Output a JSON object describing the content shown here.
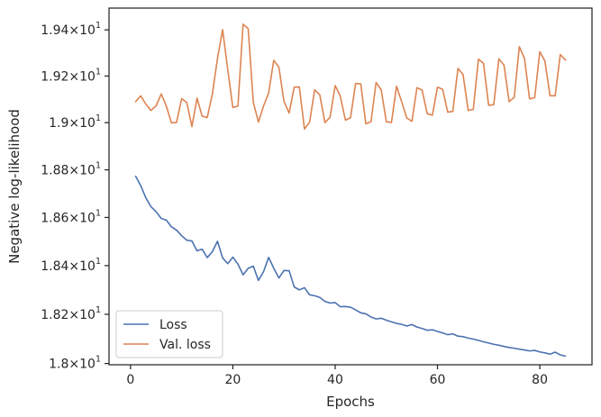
{
  "chart_data": {
    "type": "line",
    "title": "",
    "xlabel": "Epochs",
    "ylabel": "Negative log-likelihood",
    "xlim": [
      -4.2,
      90.2
    ],
    "ylim": [
      17.995,
      19.495
    ],
    "y_scale": "log",
    "grid": false,
    "legend_position": "lower-left",
    "xticks": [
      {
        "value": 0,
        "label": "0"
      },
      {
        "value": 20,
        "label": "20"
      },
      {
        "value": 40,
        "label": "40"
      },
      {
        "value": 60,
        "label": "60"
      },
      {
        "value": 80,
        "label": "80"
      }
    ],
    "yticks": [
      {
        "value": 18.0,
        "mantissa": "1.8",
        "exponent": "1"
      },
      {
        "value": 18.2,
        "mantissa": "1.82",
        "exponent": "1"
      },
      {
        "value": 18.4,
        "mantissa": "1.84",
        "exponent": "1"
      },
      {
        "value": 18.6,
        "mantissa": "1.86",
        "exponent": "1"
      },
      {
        "value": 18.8,
        "mantissa": "1.88",
        "exponent": "1"
      },
      {
        "value": 19.0,
        "mantissa": "1.9",
        "exponent": "1"
      },
      {
        "value": 19.2,
        "mantissa": "1.92",
        "exponent": "1"
      },
      {
        "value": 19.4,
        "mantissa": "1.94",
        "exponent": "1"
      }
    ],
    "x": [
      1,
      2,
      3,
      4,
      5,
      6,
      7,
      8,
      9,
      10,
      11,
      12,
      13,
      14,
      15,
      16,
      17,
      18,
      19,
      20,
      21,
      22,
      23,
      24,
      25,
      26,
      27,
      28,
      29,
      30,
      31,
      32,
      33,
      34,
      35,
      36,
      37,
      38,
      39,
      40,
      41,
      42,
      43,
      44,
      45,
      46,
      47,
      48,
      49,
      50,
      51,
      52,
      53,
      54,
      55,
      56,
      57,
      58,
      59,
      60,
      61,
      62,
      63,
      64,
      65,
      66,
      67,
      68,
      69,
      70,
      71,
      72,
      73,
      74,
      75,
      76,
      77,
      78,
      79,
      80,
      81,
      82,
      83,
      84,
      85
    ],
    "series": [
      {
        "name": "Loss",
        "color": "#4c72b0",
        "values": [
          18.773,
          18.733,
          18.682,
          18.645,
          18.624,
          18.596,
          18.589,
          18.561,
          18.547,
          18.524,
          18.505,
          18.502,
          18.461,
          18.468,
          18.433,
          18.458,
          18.501,
          18.432,
          18.408,
          18.435,
          18.406,
          18.362,
          18.389,
          18.398,
          18.339,
          18.375,
          18.434,
          18.389,
          18.349,
          18.38,
          18.379,
          18.312,
          18.3,
          18.309,
          18.28,
          18.276,
          18.269,
          18.253,
          18.246,
          18.248,
          18.231,
          18.232,
          18.229,
          18.218,
          18.206,
          18.202,
          18.189,
          18.181,
          18.184,
          18.176,
          18.169,
          18.163,
          18.159,
          18.152,
          18.158,
          18.148,
          18.142,
          18.135,
          18.137,
          18.13,
          18.124,
          18.117,
          18.12,
          18.111,
          18.109,
          18.103,
          18.099,
          18.094,
          18.088,
          18.083,
          18.078,
          18.074,
          18.069,
          18.065,
          18.062,
          18.058,
          18.055,
          18.051,
          18.053,
          18.047,
          18.043,
          18.038,
          18.046,
          18.035,
          18.03
        ]
      },
      {
        "name": "Val. loss",
        "color": "#dd8452",
        "values": [
          19.09,
          19.115,
          19.079,
          19.052,
          19.072,
          19.123,
          19.071,
          18.999,
          19.001,
          19.103,
          19.086,
          18.983,
          19.105,
          19.028,
          19.022,
          19.123,
          19.276,
          19.401,
          19.229,
          19.065,
          19.071,
          19.425,
          19.405,
          19.087,
          19.003,
          19.071,
          19.127,
          19.268,
          19.238,
          19.091,
          19.041,
          19.152,
          19.153,
          18.973,
          19.002,
          19.141,
          19.119,
          19.0,
          19.023,
          19.159,
          19.114,
          19.011,
          19.021,
          19.168,
          19.166,
          18.995,
          19.004,
          19.172,
          19.141,
          19.004,
          19.001,
          19.156,
          19.089,
          19.02,
          19.006,
          19.15,
          19.139,
          19.038,
          19.032,
          19.152,
          19.143,
          19.045,
          19.048,
          19.233,
          19.206,
          19.052,
          19.057,
          19.273,
          19.254,
          19.074,
          19.077,
          19.274,
          19.247,
          19.09,
          19.108,
          19.327,
          19.276,
          19.102,
          19.107,
          19.305,
          19.265,
          19.115,
          19.115,
          19.293,
          19.269
        ]
      }
    ]
  }
}
